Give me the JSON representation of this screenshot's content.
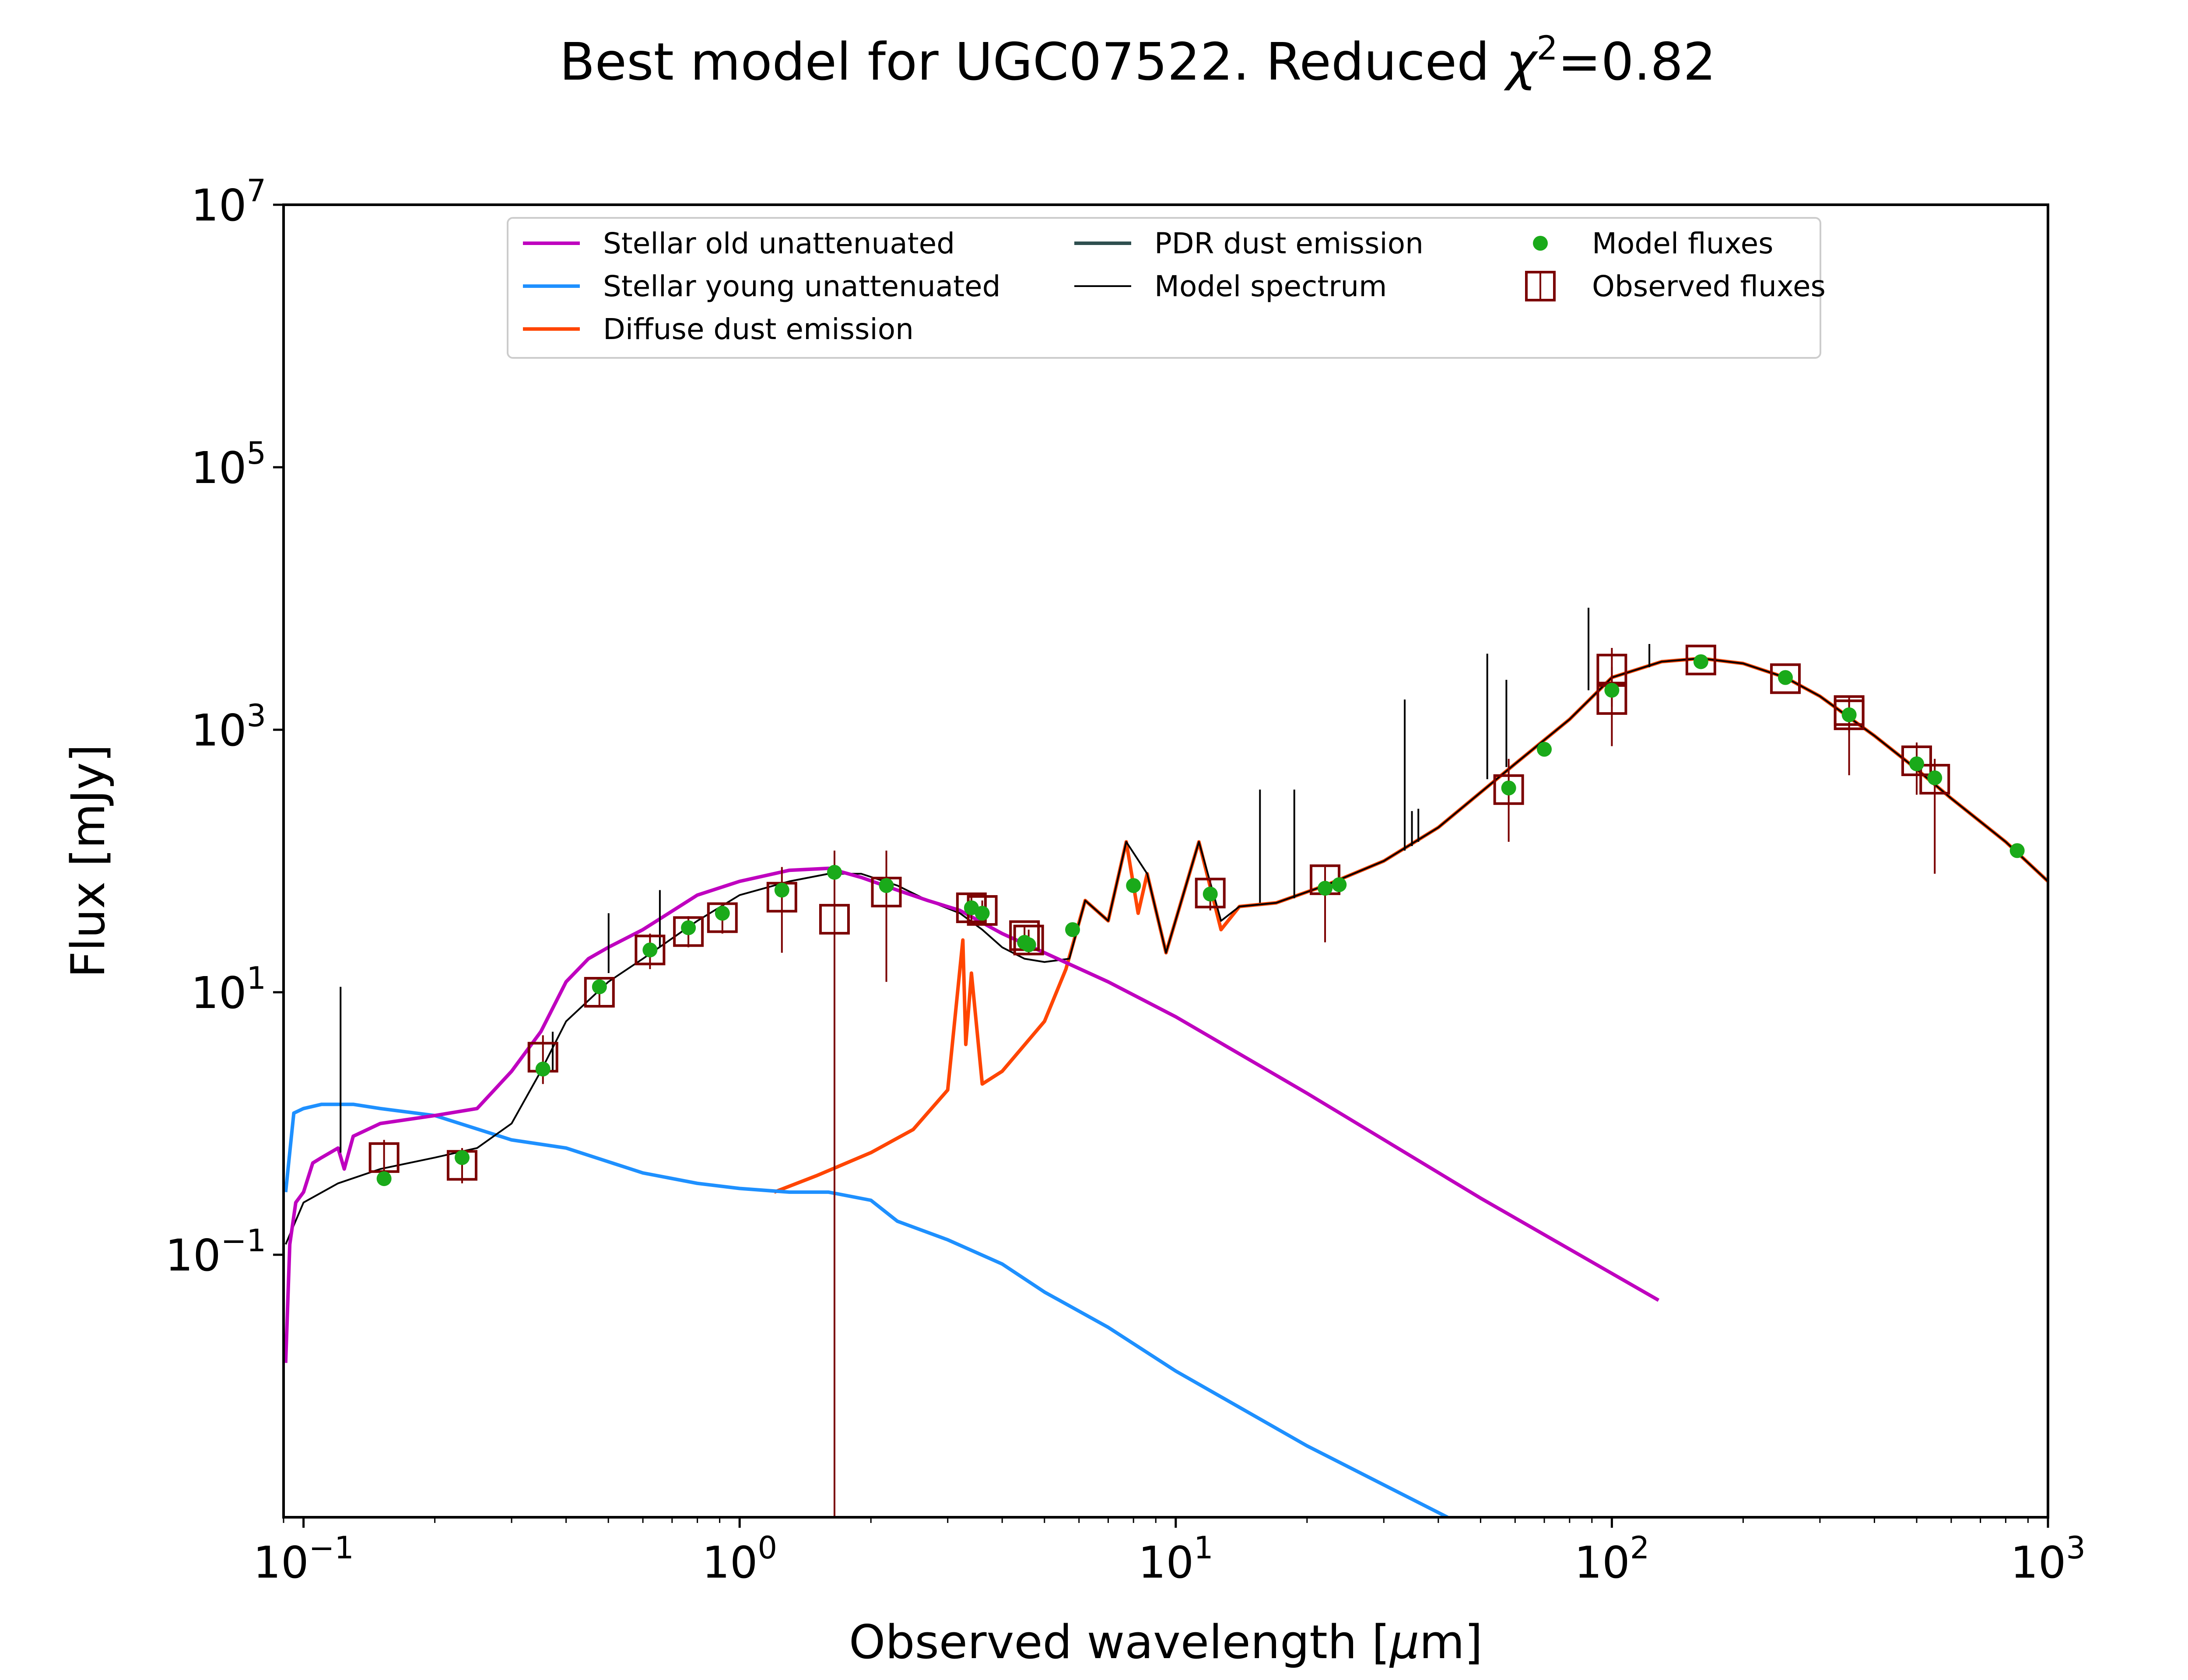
{
  "chart_data": {
    "type": "line",
    "title": "Best model for UGC07522. Reduced χ²=0.82",
    "title_parts": {
      "prefix": "Best model for UGC07522. Reduced ",
      "chi": "χ",
      "sup": "2",
      "suffix": "=0.82"
    },
    "xlabel": "Observed wavelength [μm]",
    "xlabel_parts": {
      "prefix": "Observed wavelength [",
      "mu": "μ",
      "suffix": "m]"
    },
    "ylabel": "Flux [mJy]",
    "xscale": "log",
    "yscale": "log",
    "xlim": [
      0.09,
      1000
    ],
    "ylim": [
      0.001,
      10000000
    ],
    "x_ticks": [
      {
        "value": 0.1,
        "base": "10",
        "exp": "−1"
      },
      {
        "value": 1,
        "base": "10",
        "exp": "0"
      },
      {
        "value": 10,
        "base": "10",
        "exp": "1"
      },
      {
        "value": 100,
        "base": "10",
        "exp": "2"
      },
      {
        "value": 1000,
        "base": "10",
        "exp": "3"
      }
    ],
    "y_ticks": [
      {
        "value": 0.1,
        "base": "10",
        "exp": "−1"
      },
      {
        "value": 10,
        "base": "10",
        "exp": "1"
      },
      {
        "value": 1000,
        "base": "10",
        "exp": "3"
      },
      {
        "value": 100000,
        "base": "10",
        "exp": "5"
      },
      {
        "value": 10000000,
        "base": "10",
        "exp": "7"
      }
    ],
    "grid": false,
    "legend_position": "top-center",
    "series": [
      {
        "name": "Stellar old unattenuated",
        "color": "#bf00bf",
        "x": [
          0.091,
          0.093,
          0.096,
          0.1,
          0.105,
          0.11,
          0.12,
          0.124,
          0.13,
          0.15,
          0.2,
          0.25,
          0.3,
          0.35,
          0.4,
          0.45,
          0.5,
          0.6,
          0.8,
          1.0,
          1.3,
          1.6,
          1.9,
          2.3,
          2.7,
          3.2,
          4.0,
          5.0,
          7.0,
          10,
          20,
          50,
          128
        ],
        "y": [
          0.015,
          0.12,
          0.25,
          0.3,
          0.5,
          0.55,
          0.65,
          0.45,
          0.8,
          1.0,
          1.15,
          1.3,
          2.5,
          5,
          12,
          18,
          22,
          30,
          55,
          70,
          85,
          88,
          75,
          60,
          50,
          42,
          28,
          20,
          12,
          6.5,
          1.7,
          0.27,
          0.045
        ]
      },
      {
        "name": "Stellar young unattenuated",
        "color": "#1e90ff",
        "x": [
          0.091,
          0.095,
          0.1,
          0.11,
          0.13,
          0.15,
          0.2,
          0.3,
          0.4,
          0.6,
          0.8,
          1.0,
          1.3,
          1.6,
          2.0,
          2.3,
          3.0,
          4.0,
          5.0,
          7.0,
          10,
          20,
          42
        ],
        "y": [
          0.3,
          1.2,
          1.3,
          1.4,
          1.4,
          1.3,
          1.15,
          0.75,
          0.65,
          0.42,
          0.35,
          0.32,
          0.3,
          0.3,
          0.26,
          0.18,
          0.13,
          0.085,
          0.052,
          0.028,
          0.013,
          0.0035,
          0.001
        ]
      },
      {
        "name": "Diffuse dust emission",
        "color": "#ff4500",
        "x": [
          1.2,
          1.5,
          2.0,
          2.5,
          3.0,
          3.25,
          3.3,
          3.4,
          3.6,
          4.0,
          5.0,
          5.6,
          6.2,
          7.0,
          7.7,
          8.2,
          8.6,
          9.5,
          11.3,
          12.7,
          14,
          17,
          22,
          30,
          40,
          60,
          80,
          100,
          130,
          160,
          200,
          250,
          300,
          400,
          500,
          600,
          800,
          1000
        ],
        "y": [
          0.3,
          0.4,
          0.6,
          0.9,
          1.8,
          25,
          4,
          14,
          2.0,
          2.5,
          6,
          15,
          50,
          35,
          140,
          40,
          80,
          20,
          140,
          30,
          45,
          48,
          65,
          100,
          180,
          550,
          1200,
          2500,
          3300,
          3500,
          3200,
          2500,
          1800,
          900,
          500,
          300,
          140,
          70
        ]
      },
      {
        "name": "PDR dust emission",
        "color": "#2f4f4f",
        "x": [],
        "y": []
      },
      {
        "name": "Model spectrum",
        "color": "#000000",
        "x": [
          0.091,
          0.1,
          0.12,
          0.15,
          0.2,
          0.25,
          0.3,
          0.35,
          0.4,
          0.5,
          0.6,
          0.8,
          1.0,
          1.3,
          1.6,
          1.9,
          2.3,
          2.7,
          3.2,
          3.6,
          4.0,
          4.5,
          5.0,
          5.7,
          6.2,
          7.0,
          7.7,
          8.6,
          9.5,
          11.3,
          12.7,
          14,
          17,
          22,
          30,
          40,
          60,
          80,
          100,
          130,
          160,
          200,
          250,
          300,
          400,
          500,
          600,
          800,
          1000
        ],
        "y": [
          0.12,
          0.25,
          0.35,
          0.45,
          0.55,
          0.65,
          1.0,
          2.5,
          6,
          12,
          18,
          35,
          55,
          70,
          80,
          80,
          65,
          50,
          40,
          30,
          22,
          18,
          17,
          18,
          50,
          35,
          140,
          80,
          20,
          140,
          35,
          45,
          48,
          65,
          100,
          180,
          550,
          1200,
          2500,
          3300,
          3500,
          3200,
          2500,
          1800,
          900,
          500,
          300,
          140,
          70
        ]
      }
    ],
    "spectral_lines": [
      {
        "x": 0.1216,
        "y_top": 11,
        "y_base": 0.6
      },
      {
        "x": 0.3727,
        "y_top": 5,
        "y_base": 2.5
      },
      {
        "x": 0.5007,
        "y_top": 40,
        "y_base": 14
      },
      {
        "x": 0.6563,
        "y_top": 60,
        "y_base": 22
      },
      {
        "x": 15.6,
        "y_top": 350,
        "y_base": 48
      },
      {
        "x": 18.7,
        "y_top": 350,
        "y_base": 52
      },
      {
        "x": 33.5,
        "y_top": 1700,
        "y_base": 120
      },
      {
        "x": 34.8,
        "y_top": 240,
        "y_base": 130
      },
      {
        "x": 36.0,
        "y_top": 250,
        "y_base": 140
      },
      {
        "x": 51.8,
        "y_top": 3800,
        "y_base": 420
      },
      {
        "x": 57.3,
        "y_top": 2400,
        "y_base": 520
      },
      {
        "x": 88.4,
        "y_top": 8500,
        "y_base": 2000
      },
      {
        "x": 121.9,
        "y_top": 4500,
        "y_base": 3000
      }
    ],
    "model_fluxes": {
      "name": "Model fluxes",
      "color": "#1aaa1a",
      "x": [
        0.153,
        0.231,
        0.354,
        0.477,
        0.623,
        0.763,
        0.913,
        1.25,
        1.65,
        2.17,
        3.4,
        3.6,
        4.5,
        4.6,
        5.8,
        8.0,
        12.0,
        22.0,
        23.7,
        58,
        70,
        100,
        160,
        250,
        350,
        500,
        550,
        850
      ],
      "y": [
        0.38,
        0.55,
        2.6,
        11,
        21,
        31,
        40,
        60,
        82,
        65,
        44,
        40,
        24,
        23,
        30,
        65,
        56,
        62,
        66,
        360,
        710,
        2000,
        3300,
        2500,
        1300,
        550,
        430,
        120
      ]
    },
    "observed_fluxes": {
      "name": "Observed fluxes",
      "color": "#7b0000",
      "x": [
        0.153,
        0.231,
        0.354,
        0.477,
        0.623,
        0.763,
        0.913,
        1.25,
        1.65,
        2.17,
        3.4,
        3.6,
        4.5,
        4.6,
        12.0,
        22.0,
        58,
        100,
        100,
        160,
        250,
        350,
        350,
        500,
        550
      ],
      "y": [
        0.55,
        0.48,
        3.2,
        10,
        21,
        29,
        37,
        53,
        36,
        58,
        44,
        42,
        27,
        25,
        57,
        72,
        350,
        1700,
        2900,
        3400,
        2450,
        1400,
        1300,
        580,
        420
      ],
      "yerr_low": [
        0.4,
        0.35,
        2.0,
        8,
        15,
        22,
        28,
        20,
        0.001,
        12,
        35,
        35,
        21,
        20,
        42,
        24,
        140,
        750,
        1500,
        3200,
        2300,
        950,
        450,
        320,
        80
      ],
      "yerr_high": [
        0.75,
        0.65,
        4.7,
        13,
        28,
        38,
        47,
        90,
        120,
        120,
        55,
        50,
        32,
        30,
        72,
        90,
        600,
        3000,
        4200,
        3600,
        2650,
        1750,
        1700,
        800,
        600
      ]
    }
  }
}
